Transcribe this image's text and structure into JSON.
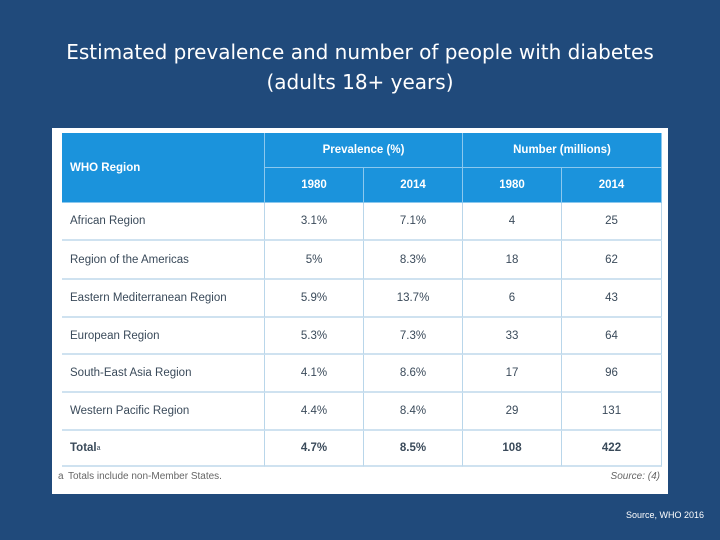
{
  "title": [
    "Estimated prevalence and number of people with diabetes",
    "(adults 18+ years)"
  ],
  "table": {
    "header": {
      "region": "WHO Region",
      "groups": [
        "Prevalence (%)",
        "Number (millions)"
      ],
      "years": [
        "1980",
        "2014",
        "1980",
        "2014"
      ]
    },
    "rows": [
      [
        "African Region",
        "3.1%",
        "7.1%",
        "4",
        "25"
      ],
      [
        "Region of the Americas",
        "5%",
        "8.3%",
        "18",
        "62"
      ],
      [
        "Eastern Mediterranean Region",
        "5.9%",
        "13.7%",
        "6",
        "43"
      ],
      [
        "European Region",
        "5.3%",
        "7.3%",
        "33",
        "64"
      ],
      [
        "South-East Asia Region",
        "4.1%",
        "8.6%",
        "17",
        "96"
      ],
      [
        "Western Pacific Region",
        "4.4%",
        "8.4%",
        "29",
        "131"
      ]
    ],
    "total": {
      "label": "Total",
      "marker": "a",
      "cells": [
        "4.7%",
        "8.5%",
        "108",
        "422"
      ]
    }
  },
  "footnote": {
    "marker": "a",
    "text": "Totals include non-Member States."
  },
  "table_source": "Source: (4)",
  "slide_source": "Source, WHO 2016"
}
